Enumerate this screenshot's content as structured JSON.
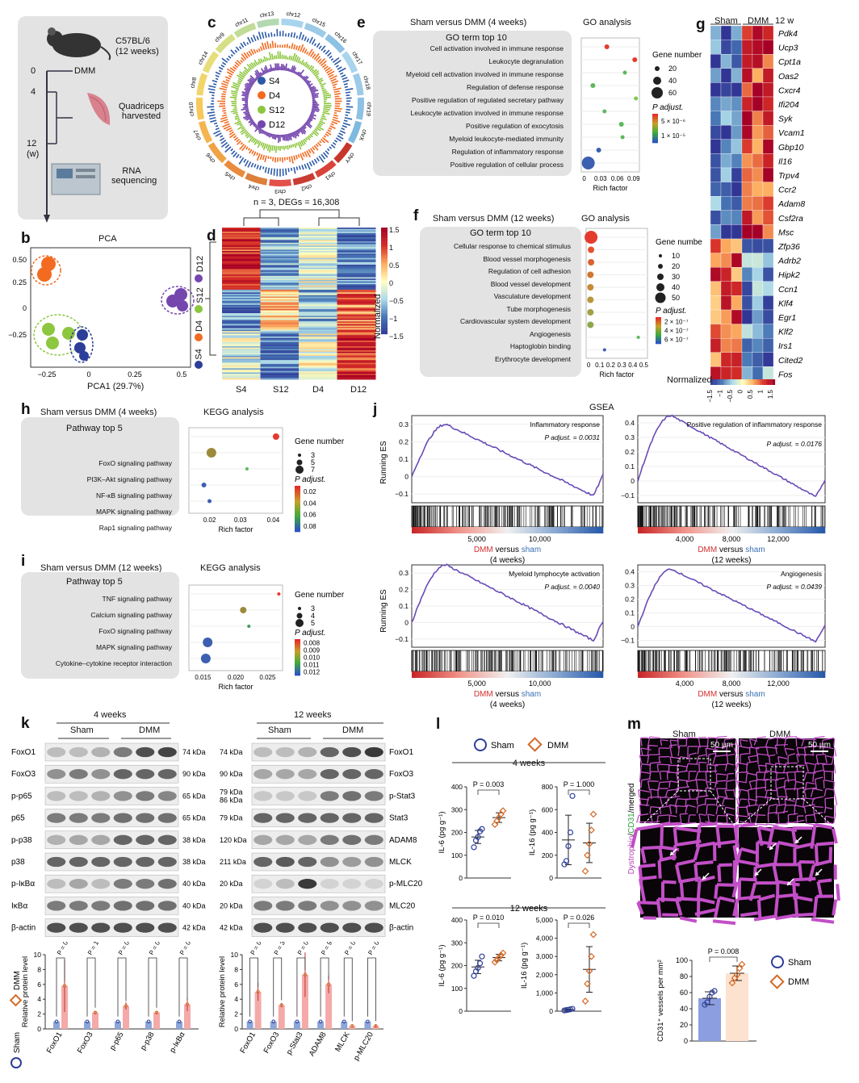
{
  "labels": {
    "a": "a",
    "b": "b",
    "c": "c",
    "d": "d",
    "e": "e",
    "f": "f",
    "g": "g",
    "h": "h",
    "i": "i",
    "j": "j",
    "k": "k",
    "l": "l",
    "m": "m"
  },
  "panel_a": {
    "strain": "C57BL/6",
    "age": "(12 weeks)",
    "t0": "0",
    "t4": "4",
    "t12": "12",
    "unit": "(w)",
    "dmm": "DMM",
    "harvest": "Quadriceps harvested",
    "rna": "RNA sequencing"
  },
  "panel_b": {
    "title": "PCA",
    "xlabel": "PCA1 (29.7%)",
    "yticks": [
      "0.50",
      "0.25",
      "0",
      "−0.25"
    ],
    "xticks": [
      "−0.25",
      "0",
      "0.25",
      "0.5"
    ],
    "legend": [
      "D12",
      "S12",
      "D4",
      "S4"
    ],
    "legend_colors": [
      "#7446ae",
      "#8dc63f",
      "#f26b21",
      "#2c3e99"
    ]
  },
  "panel_c": {
    "chromosomes": [
      "chr12",
      "chr15",
      "chr16",
      "chr17",
      "chr18",
      "chr19",
      "chrX",
      "chrY",
      "chr1",
      "chr2",
      "chr3",
      "chr4",
      "chr5",
      "chr6",
      "chr7",
      "chr10",
      "chr8",
      "chr14",
      "chr9",
      "chr11",
      "chr13"
    ],
    "legend": [
      "S4",
      "D4",
      "S12",
      "D12"
    ],
    "colors": [
      "#2c5aa8",
      "#f26b21",
      "#8dc63f",
      "#7446ae"
    ]
  },
  "panel_d": {
    "header": "n = 3,  DEGs = 16,308",
    "xlabels": [
      "S4",
      "S12",
      "D4",
      "D12"
    ],
    "scale_ticks": [
      "1.5",
      "1",
      "0.5",
      "0",
      "−0.5",
      "−1",
      "−1.5"
    ],
    "scale_label": "Normalized"
  },
  "panel_e": {
    "title": "Sham versus DMM (4 weeks)",
    "right_title": "GO analysis",
    "box_title": "GO term top 10",
    "xlabel": "Rich factor",
    "xticks": [
      "0",
      "0.03",
      "0.06",
      "0.09"
    ],
    "size_title": "Gene number",
    "sizes": [
      "20",
      "40",
      "60"
    ],
    "color_title": "P adjust.",
    "color_ticks": [
      "5 × 10⁻⁶",
      "1 × 10⁻⁵"
    ],
    "terms": [
      "Cell activation involved in immune response",
      "Leukocyte degranulation",
      "Myeloid cell activation involved in immune response",
      "Regulation of defense response",
      "Positive regulation of regulated secretary pathway",
      "Leukocyte activation involved in immune response",
      "Positive regulation of exocytosis",
      "Myeloid leukocyte-mediated immunity",
      "Regulation of inflammatory response",
      "Positive regulation of cellular process"
    ]
  },
  "panel_f": {
    "title": "Sham versus DMM (12 weeks)",
    "right_title": "GO analysis",
    "box_title": "GO term top 10",
    "xlabel": "Rich factor",
    "xticks": [
      "0",
      "0.1",
      "0.2",
      "0.3",
      "0.4",
      "0.5"
    ],
    "size_title": "Gene number",
    "sizes": [
      "10",
      "20",
      "30",
      "40",
      "50"
    ],
    "color_title": "P adjust.",
    "color_ticks": [
      "2 × 10⁻⁷",
      "4 × 10⁻⁷",
      "6 × 10⁻⁷"
    ],
    "terms": [
      "Cellular response to chemical stimulus",
      "Blood vessel morphogenesis",
      "Regulation of cell adhesion",
      "Blood vessel development",
      "Vasculature development",
      "Tube morphogenesis",
      "Cardiovascular system development",
      "Angiogenesis",
      "Haptoglobin binding",
      "Erythrocyte development"
    ]
  },
  "panel_g": {
    "sham": "Sham",
    "dmm": "DMM",
    "w": "12 w",
    "genes": [
      "Pdk4",
      "Ucp3",
      "Cpt1a",
      "Oas2",
      "Cxcr4",
      "Ifi204",
      "Syk",
      "Vcam1",
      "Gbp10",
      "Il16",
      "Trpv4",
      "Ccr2",
      "Adam8",
      "Csf2ra",
      "Msc",
      "Zfp36",
      "Adrb2",
      "Hipk2",
      "Ccn1",
      "Klf4",
      "Egr1",
      "Klf2",
      "Irs1",
      "Cited2",
      "Fos"
    ],
    "scale_label": "Normalized",
    "scale_ticks": [
      "−1.5",
      "−1",
      "−0.5",
      "0",
      "0.5",
      "1",
      "1.5"
    ]
  },
  "panel_h": {
    "title": "Sham versus DMM (4 weeks)",
    "right_title": "KEGG analysis",
    "box_title": "Pathway top 5",
    "terms": [
      "FoxO signaling pathway",
      "PI3K–Akt signaling pathway",
      "NF-κB signaling pathway",
      "MAPK signaling pathway",
      "Rap1 signaling pathway"
    ],
    "xlabel": "Rich factor",
    "xticks": [
      "0.02",
      "0.03",
      "0.04"
    ],
    "size_title": "Gene number",
    "sizes": [
      "3",
      "5",
      "7"
    ],
    "color_title": "P adjust.",
    "color_ticks": [
      "0.02",
      "0.04",
      "0.06",
      "0.08"
    ]
  },
  "panel_i": {
    "title": "Sham versus DMM (12 weeks)",
    "right_title": "KEGG analysis",
    "box_title": "Pathway top 5",
    "terms": [
      "TNF signaling pathway",
      "Calcium signaling pathway",
      "FoxO signaling pathway",
      "MAPK signaling pathway",
      "Cytokine–cytokine receptor interaction"
    ],
    "xlabel": "Rich factor",
    "xticks": [
      "0.015",
      "0.020",
      "0.025"
    ],
    "size_title": "Gene number",
    "sizes": [
      "3",
      "4",
      "5"
    ],
    "color_title": "P adjust.",
    "color_ticks": [
      "0.008",
      "0.009",
      "0.010",
      "0.011",
      "0.012"
    ]
  },
  "panel_j": {
    "title": "GSEA",
    "ylabel": "Running ES",
    "plots": [
      {
        "name": "Inflammatory response",
        "p": "P adjust. = 0.0031",
        "xticks": [
          "5,000",
          "10,000"
        ],
        "cap1": "DMM",
        "cap2": "versus",
        "cap3": "sham",
        "cap4": "(4 weeks)"
      },
      {
        "name": "Positive regulation of inflammatory response",
        "p": "P adjust. = 0.0176",
        "xticks": [
          "4,000",
          "8,000",
          "12,000"
        ],
        "cap1": "DMM",
        "cap2": "versus",
        "cap3": "sham",
        "cap4": "(12 weeks)"
      },
      {
        "name": "Myeloid lymphocyte activation",
        "p": "P adjust. = 0.0040",
        "xticks": [
          "5,000",
          "10,000"
        ],
        "cap1": "DMM",
        "cap2": "versus",
        "cap3": "sham",
        "cap4": "(4 weeks)"
      },
      {
        "name": "Angiogenesis",
        "p": "P adjust. = 0.0439",
        "xticks": [
          "4,000",
          "8,000",
          "12,000"
        ],
        "cap1": "DMM",
        "cap2": "versus",
        "cap3": "sham",
        "cap4": "(12 weeks)"
      }
    ],
    "yticks_a": [
      "0.3",
      "0.2",
      "0.1",
      "0",
      "−0.1"
    ],
    "yticks_b": [
      "0.4",
      "0.3",
      "0.2",
      "0.1",
      "0",
      "−0.1"
    ]
  },
  "panel_k": {
    "w4": "4 weeks",
    "w12": "12 weeks",
    "sham": "Sham",
    "dmm": "DMM",
    "left_bands": [
      {
        "n": "FoxO1",
        "kda": "74 kDa"
      },
      {
        "n": "FoxO3",
        "kda": "90 kDa"
      },
      {
        "n": "p-p65",
        "kda": "65 kDa"
      },
      {
        "n": "p65",
        "kda": "65 kDa"
      },
      {
        "n": "p-p38",
        "kda": "38 kDa"
      },
      {
        "n": "p38",
        "kda": "38 kDa"
      },
      {
        "n": "p-IκBα",
        "kda": "40 kDa"
      },
      {
        "n": "IκBα",
        "kda": "40 kDa"
      },
      {
        "n": "β-actin",
        "kda": "42 kDa"
      }
    ],
    "right_bands": [
      {
        "n": "FoxO1",
        "kda": "74 kDa"
      },
      {
        "n": "FoxO3",
        "kda": "90 kDa"
      },
      {
        "n": "p-Stat3",
        "kda": "79 kDa\n86 kDa"
      },
      {
        "n": "Stat3",
        "kda": "79 kDa"
      },
      {
        "n": "ADAM8",
        "kda": "120 kDa"
      },
      {
        "n": "MLCK",
        "kda": "211 kDa"
      },
      {
        "n": "p-MLC20",
        "kda": "20 kDa"
      },
      {
        "n": "MLC20",
        "kda": "20 kDa"
      },
      {
        "n": "β-actin",
        "kda": "42 kDa"
      }
    ],
    "ylabel": "Relative protein level",
    "legend_sham": "Sham",
    "legend_dmm": "DMM",
    "yticks": [
      "0",
      "2",
      "4",
      "6",
      "8",
      "10"
    ]
  },
  "chart_data": [
    {
      "type": "bar",
      "title": "",
      "ylabel": "Relative protein level",
      "categories": [
        "FoxO1",
        "FoxO3",
        "p-p65",
        "p-p38",
        "p-IκBα"
      ],
      "series": [
        {
          "name": "Sham",
          "values": [
            1,
            1,
            1,
            1,
            1
          ]
        },
        {
          "name": "DMM",
          "values": [
            5.8,
            2.2,
            3.1,
            2.2,
            3.3
          ]
        }
      ],
      "errors": [
        [
          0.2,
          0.1,
          0.2,
          0.1,
          0.2
        ],
        [
          3.5,
          0.2,
          0.5,
          0.2,
          0.9
        ]
      ],
      "pvalues": [
        "P = 0.075",
        "P = 1 × 10⁻⁴",
        "P = 0.002",
        "P = 0.001",
        "P = 0.016"
      ],
      "ylim": [
        0,
        10
      ]
    },
    {
      "type": "bar",
      "title": "",
      "ylabel": "Relative protein level",
      "categories": [
        "FoxO1",
        "FoxO3",
        "p-Stat3",
        "ADAM8",
        "MLCK",
        "p-MLC20"
      ],
      "series": [
        {
          "name": "Sham",
          "values": [
            1,
            1,
            1,
            1,
            1,
            1
          ]
        },
        {
          "name": "DMM",
          "values": [
            5.0,
            3.2,
            7.3,
            6.0,
            0.4,
            0.4
          ]
        }
      ],
      "errors": [
        [
          0.3,
          0.1,
          0.3,
          0.2,
          0.3,
          0.6
        ],
        [
          1.2,
          0.3,
          3.0,
          1.2,
          0.1,
          0.2
        ]
      ],
      "pvalues": [
        "P = 0.008",
        "P = 3 × 10⁻⁵",
        "P = 0.023",
        "P = 9 × 10⁻⁴",
        "P = 0.006",
        "P = 0.243"
      ],
      "ylim": [
        0,
        10
      ]
    },
    {
      "type": "scatter",
      "title": "4 weeks",
      "ylabel": "IL-6 (pg g⁻¹)",
      "p": "P = 0.003",
      "ylim": [
        0,
        400
      ],
      "yticks": [
        "0",
        "100",
        "200",
        "300",
        "400"
      ],
      "series": [
        {
          "name": "Sham",
          "values": [
            135,
            165,
            180,
            205,
            215
          ]
        },
        {
          "name": "DMM",
          "values": [
            235,
            250,
            265,
            280,
            295
          ]
        }
      ]
    },
    {
      "type": "scatter",
      "title": "4 weeks",
      "ylabel": "IL-16 (pg g⁻¹)",
      "p": "P = 1.000",
      "ylim": [
        0,
        800
      ],
      "yticks": [
        "0",
        "200",
        "400",
        "600",
        "800"
      ],
      "series": [
        {
          "name": "Sham",
          "values": [
            120,
            150,
            280,
            400,
            720
          ]
        },
        {
          "name": "DMM",
          "values": [
            60,
            200,
            300,
            420,
            560
          ]
        }
      ]
    },
    {
      "type": "scatter",
      "title": "12 weeks",
      "ylabel": "IL-6 (pg g⁻¹)",
      "p": "P = 0.010",
      "ylim": [
        0,
        400
      ],
      "yticks": [
        "0",
        "100",
        "200",
        "300",
        "400"
      ],
      "series": [
        {
          "name": "Sham",
          "values": [
            155,
            175,
            190,
            210,
            240
          ]
        },
        {
          "name": "DMM",
          "values": [
            215,
            225,
            235,
            245,
            255
          ]
        }
      ]
    },
    {
      "type": "scatter",
      "title": "12 weeks",
      "ylabel": "IL-16 (pg g⁻¹)",
      "p": "P = 0.026",
      "ylim": [
        0,
        5000
      ],
      "yticks": [
        "0",
        "1,000",
        "2,000",
        "3,000",
        "4,000",
        "5,000"
      ],
      "series": [
        {
          "name": "Sham",
          "values": [
            40,
            60,
            80,
            100,
            130
          ]
        },
        {
          "name": "DMM",
          "values": [
            550,
            1500,
            2200,
            3000,
            4200
          ]
        }
      ]
    },
    {
      "type": "bar",
      "title": "",
      "ylabel": "CD31⁺ vessels per mm²",
      "categories": [
        "Sham",
        "DMM"
      ],
      "values": [
        53,
        84
      ],
      "errors": [
        8,
        9
      ],
      "p": "P = 0.008",
      "ylim": [
        0,
        100
      ],
      "yticks": [
        "0",
        "20",
        "40",
        "60",
        "80",
        "100"
      ],
      "points": [
        [
          45,
          48,
          55,
          60,
          62
        ],
        [
          72,
          78,
          82,
          90,
          95
        ]
      ]
    }
  ],
  "panel_l": {
    "legend_sham": "Sham",
    "legend_dmm": "DMM",
    "w4": "4 weeks",
    "w12": "12 weeks"
  },
  "panel_m": {
    "sham": "Sham",
    "dmm": "DMM",
    "scale": "50 µm",
    "side1": "Dystrophin",
    "side2": "/",
    "side3": "CD31",
    "side4": "/merged",
    "legend_sham": "Sham",
    "legend_dmm": "DMM",
    "p": "P = 0.008"
  }
}
